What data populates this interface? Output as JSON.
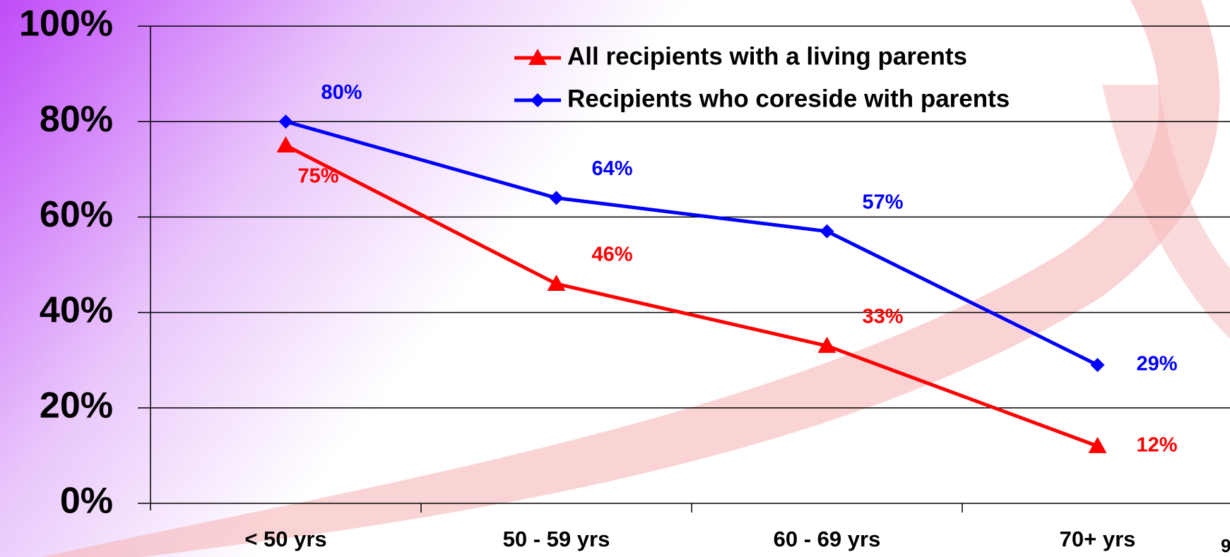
{
  "chart_data": {
    "type": "line",
    "categories": [
      "< 50 yrs",
      "50 - 59 yrs",
      "60 - 69 yrs",
      "70+ yrs"
    ],
    "series": [
      {
        "name": "All recipients with a living parents",
        "color": "#ff0000",
        "marker": "triangle",
        "values": [
          75,
          46,
          33,
          12
        ],
        "value_labels": [
          "75%",
          "46%",
          "33%",
          "12%"
        ]
      },
      {
        "name": "Recipients who coreside with parents",
        "color": "#0000ff",
        "marker": "diamond",
        "values": [
          80,
          64,
          57,
          29
        ],
        "value_labels": [
          "80%",
          "64%",
          "57%",
          "29%"
        ]
      }
    ],
    "ylim": [
      0,
      100
    ],
    "yticks": [
      {
        "value": 0,
        "label": "0%"
      },
      {
        "value": 20,
        "label": "20%"
      },
      {
        "value": 40,
        "label": "40%"
      },
      {
        "value": 60,
        "label": "60%"
      },
      {
        "value": 80,
        "label": "80%"
      },
      {
        "value": 100,
        "label": "100%"
      }
    ],
    "grid": true,
    "legend": "top",
    "page_number": "9"
  }
}
